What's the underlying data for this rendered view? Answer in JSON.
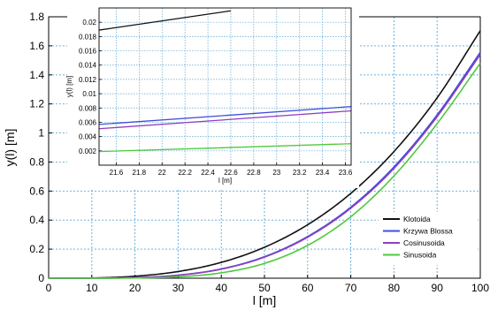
{
  "chart_data": {
    "type": "line",
    "main": {
      "xlabel": "l [m]",
      "ylabel": "y(l) [m]",
      "xlim": [
        0,
        100
      ],
      "ylim": [
        0,
        1.8
      ],
      "xticks": [
        "0",
        "10",
        "20",
        "30",
        "40",
        "50",
        "60",
        "70",
        "80",
        "90",
        "100"
      ],
      "yticks": [
        "0",
        "0.2",
        "0.4",
        "0.6",
        "0.8",
        "1",
        "1.2",
        "1.4",
        "1.6",
        "1.8"
      ],
      "grid": true,
      "legend_position": "bottom-right",
      "series": [
        {
          "name": "Klotoida",
          "color": "#111111",
          "x": [
            0,
            10,
            20,
            30,
            40,
            50,
            60,
            70,
            80,
            90,
            100
          ],
          "y": [
            0,
            0.0017,
            0.0136,
            0.046,
            0.109,
            0.213,
            0.368,
            0.584,
            0.872,
            1.242,
            1.704
          ]
        },
        {
          "name": "Krzywa Blossa",
          "color": "#3b4fd8",
          "x": [
            0,
            10,
            20,
            30,
            40,
            50,
            60,
            70,
            80,
            90,
            100
          ],
          "y": [
            0,
            0.0002,
            0.0042,
            0.021,
            0.064,
            0.148,
            0.287,
            0.489,
            0.766,
            1.124,
            1.555
          ]
        },
        {
          "name": "Cosinusoida",
          "color": "#8e3fbf",
          "x": [
            0,
            10,
            20,
            30,
            40,
            50,
            60,
            70,
            80,
            90,
            100
          ],
          "y": [
            0,
            0.0002,
            0.004,
            0.02,
            0.062,
            0.145,
            0.282,
            0.482,
            0.756,
            1.112,
            1.54
          ]
        },
        {
          "name": "Sinusoida",
          "color": "#4ec93c",
          "x": [
            0,
            10,
            20,
            30,
            40,
            50,
            60,
            70,
            80,
            90,
            100
          ],
          "y": [
            0,
            0.0001,
            0.0016,
            0.0093,
            0.037,
            0.102,
            0.226,
            0.423,
            0.704,
            1.064,
            1.48
          ]
        }
      ]
    },
    "inset": {
      "xlabel": "l [m]",
      "ylabel": "y(l) [m]",
      "xlim": [
        21.45,
        23.65
      ],
      "ylim": [
        0,
        0.022
      ],
      "xticks": [
        "21.6",
        "21.8",
        "22",
        "22.2",
        "22.4",
        "22.6",
        "22.8",
        "23",
        "23.2",
        "23.4",
        "23.6"
      ],
      "yticks": [
        "0.002",
        "0.004",
        "0.006",
        "0.008",
        "0.01",
        "0.012",
        "0.014",
        "0.016",
        "0.018",
        "0.02"
      ],
      "grid": true,
      "series": [
        {
          "name": "Klotoida",
          "color": "#111111",
          "x": [
            21.45,
            22.6
          ],
          "y": [
            0.0189,
            0.0216
          ]
        },
        {
          "name": "Krzywa Blossa",
          "color": "#3b4fd8",
          "x": [
            21.45,
            23.65
          ],
          "y": [
            0.0057,
            0.0082
          ]
        },
        {
          "name": "Cosinusoida",
          "color": "#8e3fbf",
          "x": [
            21.45,
            23.65
          ],
          "y": [
            0.0051,
            0.0076
          ]
        },
        {
          "name": "Sinusoida",
          "color": "#4ec93c",
          "x": [
            21.45,
            23.65
          ],
          "y": [
            0.0019,
            0.003
          ]
        }
      ]
    }
  }
}
